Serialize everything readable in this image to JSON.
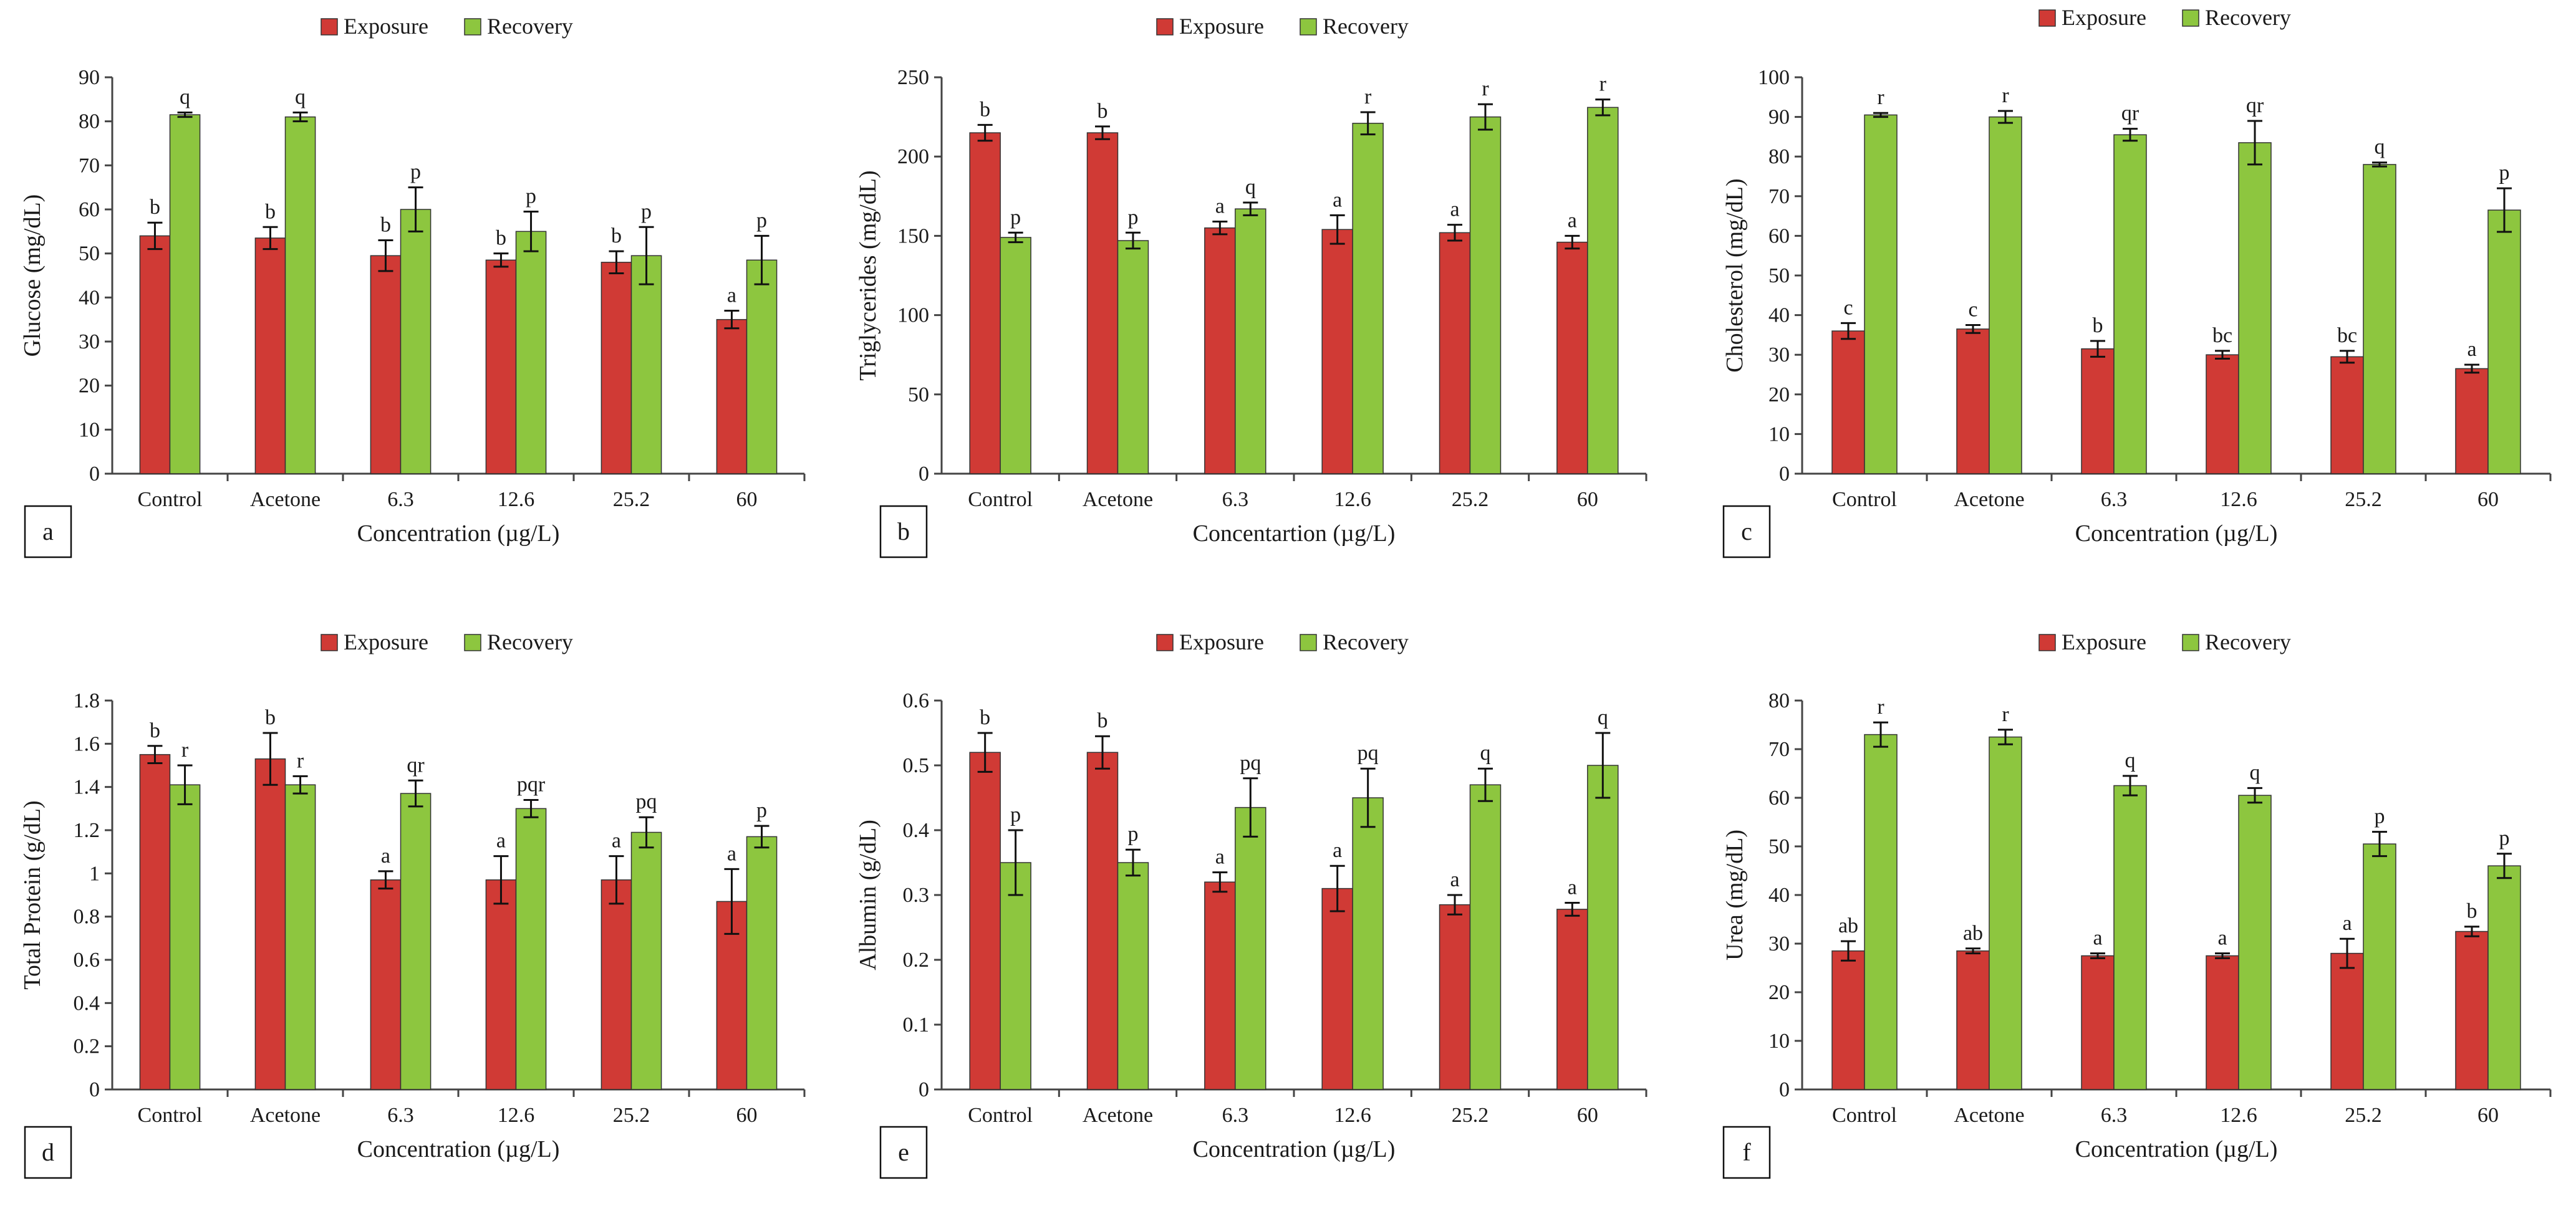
{
  "colors": {
    "exposure": "#d03a35",
    "recovery": "#8dc63f",
    "bar_edge": "#333333",
    "axis": "#444444"
  },
  "chart_data": [
    {
      "type": "bar",
      "panel": "a",
      "ylabel": "Glucose (mg/dL)",
      "xlabel": "Concentration (µg/L)",
      "categories": [
        "Control",
        "Acetone",
        "6.3",
        "12.6",
        "25.2",
        "60"
      ],
      "ylim": [
        0,
        90
      ],
      "ytick_step": 10,
      "tick_labels": [
        "0",
        "10",
        "20",
        "30",
        "40",
        "50",
        "60",
        "70",
        "80",
        "90"
      ],
      "series": [
        {
          "name": "Exposure",
          "values": [
            54,
            53.5,
            49.5,
            48.5,
            48,
            35
          ],
          "errors": [
            3,
            2.5,
            3.5,
            1.5,
            2.5,
            2
          ],
          "letters": [
            "b",
            "b",
            "b",
            "b",
            "b",
            "a"
          ]
        },
        {
          "name": "Recovery",
          "values": [
            81.5,
            81,
            60,
            55,
            49.5,
            48.5
          ],
          "errors": [
            0.5,
            1,
            5,
            4.5,
            6.5,
            5.5
          ],
          "letters": [
            "q",
            "q",
            "p",
            "p",
            "p",
            "p"
          ]
        }
      ]
    },
    {
      "type": "bar",
      "panel": "b",
      "ylabel": "Triglycerides (mg/dL)",
      "xlabel": "Concentartion (µg/L)",
      "categories": [
        "Control",
        "Acetone",
        "6.3",
        "12.6",
        "25.2",
        "60"
      ],
      "ylim": [
        0,
        250
      ],
      "ytick_step": 50,
      "tick_labels": [
        "0",
        "50",
        "100",
        "150",
        "200",
        "250"
      ],
      "series": [
        {
          "name": "Exposure",
          "values": [
            215,
            215,
            155,
            154,
            152,
            146
          ],
          "errors": [
            5,
            4,
            4,
            9,
            5,
            4
          ],
          "letters": [
            "b",
            "b",
            "a",
            "a",
            "a",
            "a"
          ]
        },
        {
          "name": "Recovery",
          "values": [
            149,
            147,
            167,
            221,
            225,
            231
          ],
          "errors": [
            3,
            5,
            4,
            7,
            8,
            5
          ],
          "letters": [
            "p",
            "p",
            "q",
            "r",
            "r",
            "r"
          ]
        }
      ]
    },
    {
      "type": "bar",
      "panel": "c",
      "ylabel": "Cholesterol (mg/dL)",
      "xlabel": "Concentration (µg/L)",
      "categories": [
        "Control",
        "Acetone",
        "6.3",
        "12.6",
        "25.2",
        "60"
      ],
      "ylim": [
        0,
        100
      ],
      "ytick_step": 10,
      "tick_labels": [
        "0",
        "10",
        "20",
        "30",
        "40",
        "50",
        "60",
        "70",
        "80",
        "90",
        "100"
      ],
      "series": [
        {
          "name": "Exposure",
          "values": [
            36,
            36.5,
            31.5,
            30,
            29.5,
            26.5
          ],
          "errors": [
            2,
            1,
            2,
            1,
            1.5,
            1
          ],
          "letters": [
            "c",
            "c",
            "b",
            "bc",
            "bc",
            "a"
          ]
        },
        {
          "name": "Recovery",
          "values": [
            90.5,
            90,
            85.5,
            83.5,
            78,
            66.5
          ],
          "errors": [
            0.5,
            1.5,
            1.5,
            5.5,
            0.5,
            5.5
          ],
          "letters": [
            "r",
            "r",
            "qr",
            "qr",
            "q",
            "p"
          ]
        }
      ]
    },
    {
      "type": "bar",
      "panel": "d",
      "ylabel": "Total Protein (g/dL)",
      "xlabel": "Concentration (µg/L)",
      "categories": [
        "Control",
        "Acetone",
        "6.3",
        "12.6",
        "25.2",
        "60"
      ],
      "ylim": [
        0,
        1.8
      ],
      "ytick_step": 0.2,
      "tick_labels": [
        "0",
        "0.2",
        "0.4",
        "0.6",
        "0.8",
        "1",
        "1.2",
        "1.4",
        "1.6",
        "1.8"
      ],
      "series": [
        {
          "name": "Exposure",
          "values": [
            1.55,
            1.53,
            0.97,
            0.97,
            0.97,
            0.87
          ],
          "errors": [
            0.04,
            0.12,
            0.04,
            0.11,
            0.11,
            0.15
          ],
          "letters": [
            "b",
            "b",
            "a",
            "a",
            "a",
            "a"
          ]
        },
        {
          "name": "Recovery",
          "values": [
            1.41,
            1.41,
            1.37,
            1.3,
            1.19,
            1.17
          ],
          "errors": [
            0.09,
            0.04,
            0.06,
            0.04,
            0.07,
            0.05
          ],
          "letters": [
            "r",
            "r",
            "qr",
            "pqr",
            "pq",
            "p"
          ]
        }
      ]
    },
    {
      "type": "bar",
      "panel": "e",
      "ylabel": "Albumin (g/dL)",
      "xlabel": "Concentration (µg/L)",
      "categories": [
        "Control",
        "Acetone",
        "6.3",
        "12.6",
        "25.2",
        "60"
      ],
      "ylim": [
        0,
        0.6
      ],
      "ytick_step": 0.1,
      "tick_labels": [
        "0",
        "0.1",
        "0.2",
        "0.3",
        "0.4",
        "0.5",
        "0.6"
      ],
      "series": [
        {
          "name": "Exposure",
          "values": [
            0.52,
            0.52,
            0.32,
            0.31,
            0.285,
            0.278
          ],
          "errors": [
            0.03,
            0.025,
            0.015,
            0.035,
            0.015,
            0.01
          ],
          "letters": [
            "b",
            "b",
            "a",
            "a",
            "a",
            "a"
          ]
        },
        {
          "name": "Recovery",
          "values": [
            0.35,
            0.35,
            0.435,
            0.45,
            0.47,
            0.5
          ],
          "errors": [
            0.05,
            0.02,
            0.045,
            0.045,
            0.025,
            0.05
          ],
          "letters": [
            "p",
            "p",
            "pq",
            "pq",
            "q",
            "q"
          ]
        }
      ]
    },
    {
      "type": "bar",
      "panel": "f",
      "ylabel": "Urea (mg/dL)",
      "xlabel": "Concentration (µg/L)",
      "categories": [
        "Control",
        "Acetone",
        "6.3",
        "12.6",
        "25.2",
        "60"
      ],
      "ylim": [
        0,
        80
      ],
      "ytick_step": 10,
      "tick_labels": [
        "0",
        "10",
        "20",
        "30",
        "40",
        "50",
        "60",
        "70",
        "80"
      ],
      "series": [
        {
          "name": "Exposure",
          "values": [
            28.5,
            28.5,
            27.5,
            27.5,
            28,
            32.5
          ],
          "errors": [
            2,
            0.5,
            0.5,
            0.5,
            3,
            1
          ],
          "letters": [
            "ab",
            "ab",
            "a",
            "a",
            "a",
            "b"
          ]
        },
        {
          "name": "Recovery",
          "values": [
            73,
            72.5,
            62.5,
            60.5,
            50.5,
            46
          ],
          "errors": [
            2.5,
            1.5,
            2,
            1.5,
            2.5,
            2.5
          ],
          "letters": [
            "r",
            "r",
            "q",
            "q",
            "p",
            "p"
          ]
        }
      ]
    }
  ]
}
